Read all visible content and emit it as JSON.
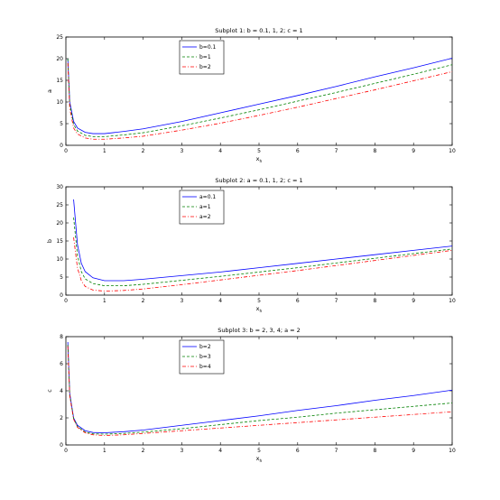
{
  "figure": {
    "background": "#ffffff"
  },
  "chart_data": [
    {
      "type": "line",
      "title": "Subplot 1: b = 0.1, 1, 2; c = 1",
      "xlabel": "x_h",
      "ylabel": "a",
      "xlim": [
        0,
        10
      ],
      "ylim": [
        0,
        25
      ],
      "xticks": [
        0,
        1,
        2,
        3,
        4,
        5,
        6,
        7,
        8,
        9,
        10
      ],
      "yticks": [
        0,
        5,
        10,
        15,
        20,
        25
      ],
      "grid": false,
      "legend": "upper-left-inside",
      "series": [
        {
          "name": "b=0.1",
          "color": "#0000ff",
          "dash": "solid",
          "x": [
            0.05,
            0.1,
            0.2,
            0.3,
            0.5,
            0.7,
            1.0,
            1.5,
            2,
            3,
            4,
            5,
            6,
            7,
            8,
            9,
            10
          ],
          "y": [
            20.0,
            10.0,
            5.5,
            4.0,
            3.0,
            2.7,
            2.7,
            3.2,
            3.8,
            5.5,
            7.5,
            9.5,
            11.5,
            13.6,
            15.8,
            17.9,
            20.1
          ]
        },
        {
          "name": "b=1",
          "color": "#008000",
          "dash": "dashed",
          "x": [
            0.05,
            0.1,
            0.2,
            0.3,
            0.5,
            0.7,
            1.0,
            1.5,
            2,
            3,
            4,
            5,
            6,
            7,
            8,
            9,
            10
          ],
          "y": [
            20.0,
            9.5,
            4.8,
            3.3,
            2.3,
            2.0,
            2.0,
            2.4,
            2.9,
            4.5,
            6.3,
            8.2,
            10.2,
            12.2,
            14.3,
            16.4,
            18.6
          ]
        },
        {
          "name": "b=2",
          "color": "#ff0000",
          "dash": "dashdot",
          "x": [
            0.05,
            0.1,
            0.2,
            0.3,
            0.5,
            0.7,
            1.0,
            1.5,
            2,
            3,
            4,
            5,
            6,
            7,
            8,
            9,
            10
          ],
          "y": [
            19.0,
            8.5,
            4.0,
            2.6,
            1.7,
            1.4,
            1.4,
            1.7,
            2.1,
            3.5,
            5.1,
            6.9,
            8.8,
            10.8,
            12.8,
            14.9,
            17.0
          ]
        }
      ]
    },
    {
      "type": "line",
      "title": "Subplot 2: a = 0.1, 1, 2; c = 1",
      "xlabel": "x_h",
      "ylabel": "b",
      "xlim": [
        0,
        10
      ],
      "ylim": [
        0,
        30
      ],
      "xticks": [
        0,
        1,
        2,
        3,
        4,
        5,
        6,
        7,
        8,
        9,
        10
      ],
      "yticks": [
        0,
        5,
        10,
        15,
        20,
        25,
        30
      ],
      "grid": false,
      "legend": "upper-left-inside",
      "series": [
        {
          "name": "a=0.1",
          "color": "#0000ff",
          "dash": "solid",
          "x": [
            0.2,
            0.3,
            0.4,
            0.5,
            0.7,
            1.0,
            1.5,
            2,
            3,
            4,
            5,
            6,
            7,
            8,
            9,
            10
          ],
          "y": [
            26.5,
            14.0,
            8.8,
            6.5,
            4.8,
            4.0,
            4.0,
            4.4,
            5.4,
            6.4,
            7.6,
            8.8,
            10.0,
            11.2,
            12.4,
            13.6
          ]
        },
        {
          "name": "a=1",
          "color": "#008000",
          "dash": "dashed",
          "x": [
            0.2,
            0.3,
            0.4,
            0.5,
            0.7,
            1.0,
            1.5,
            2,
            3,
            4,
            5,
            6,
            7,
            8,
            9,
            10
          ],
          "y": [
            21.5,
            11.0,
            6.5,
            4.5,
            3.2,
            2.6,
            2.6,
            3.0,
            4.1,
            5.2,
            6.4,
            7.6,
            8.9,
            10.2,
            11.5,
            12.8
          ]
        },
        {
          "name": "a=2",
          "color": "#ff0000",
          "dash": "dashdot",
          "x": [
            0.2,
            0.3,
            0.4,
            0.5,
            0.7,
            1.0,
            1.5,
            2,
            3,
            4,
            5,
            6,
            7,
            8,
            9,
            10
          ],
          "y": [
            16.0,
            7.5,
            4.0,
            2.4,
            1.4,
            1.1,
            1.3,
            1.7,
            2.9,
            4.2,
            5.5,
            6.8,
            8.2,
            9.6,
            11.0,
            12.4
          ]
        }
      ]
    },
    {
      "type": "line",
      "title": "Subplot 3: b = 2, 3, 4; a = 2",
      "xlabel": "x_h",
      "ylabel": "c",
      "xlim": [
        0,
        10
      ],
      "ylim": [
        0,
        8
      ],
      "xticks": [
        0,
        1,
        2,
        3,
        4,
        5,
        6,
        7,
        8,
        9,
        10
      ],
      "yticks": [
        0,
        2,
        4,
        6,
        8
      ],
      "grid": false,
      "legend": "upper-left-inside",
      "series": [
        {
          "name": "b=2",
          "color": "#0000ff",
          "dash": "solid",
          "x": [
            0.05,
            0.1,
            0.2,
            0.3,
            0.5,
            0.7,
            1.0,
            1.5,
            2,
            3,
            4,
            5,
            6,
            7,
            8,
            9,
            10
          ],
          "y": [
            7.6,
            3.8,
            2.0,
            1.45,
            1.05,
            0.92,
            0.9,
            0.98,
            1.1,
            1.45,
            1.8,
            2.15,
            2.55,
            2.9,
            3.3,
            3.65,
            4.05
          ]
        },
        {
          "name": "b=3",
          "color": "#008000",
          "dash": "dashed",
          "x": [
            0.05,
            0.1,
            0.2,
            0.3,
            0.5,
            0.7,
            1.0,
            1.5,
            2,
            3,
            4,
            5,
            6,
            7,
            8,
            9,
            10
          ],
          "y": [
            7.4,
            3.7,
            1.95,
            1.35,
            0.95,
            0.82,
            0.8,
            0.85,
            0.95,
            1.2,
            1.5,
            1.8,
            2.05,
            2.35,
            2.6,
            2.85,
            3.1
          ]
        },
        {
          "name": "b=4",
          "color": "#ff0000",
          "dash": "dashdot",
          "x": [
            0.05,
            0.1,
            0.2,
            0.3,
            0.5,
            0.7,
            1.0,
            1.5,
            2,
            3,
            4,
            5,
            6,
            7,
            8,
            9,
            10
          ],
          "y": [
            7.3,
            3.6,
            1.9,
            1.3,
            0.9,
            0.75,
            0.7,
            0.75,
            0.85,
            1.05,
            1.25,
            1.45,
            1.65,
            1.85,
            2.05,
            2.25,
            2.45
          ]
        }
      ]
    }
  ]
}
